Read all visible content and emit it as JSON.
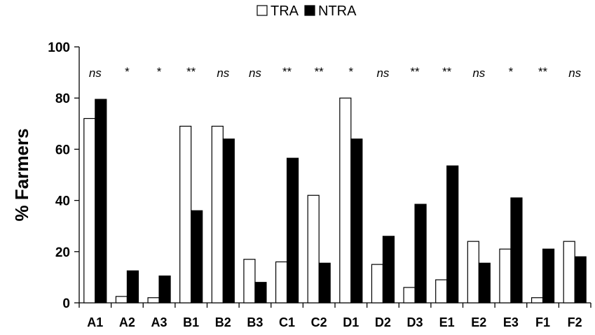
{
  "chart_data": {
    "type": "bar",
    "title": "",
    "xlabel": "",
    "ylabel": "% Farmers",
    "ylim": [
      0,
      100
    ],
    "yticks": [
      0,
      20,
      40,
      60,
      80,
      100
    ],
    "grid": false,
    "legend_position": "top-center",
    "categories": [
      "A1",
      "A2",
      "A3",
      "B1",
      "B2",
      "B3",
      "C1",
      "C2",
      "D1",
      "D2",
      "D3",
      "E1",
      "E2",
      "E3",
      "F1",
      "F2"
    ],
    "series": [
      {
        "name": "TRA",
        "color": "#ffffff",
        "values": [
          72,
          2.5,
          2,
          69,
          69,
          17,
          16,
          42,
          80,
          15,
          6,
          9,
          24,
          21,
          2,
          24
        ]
      },
      {
        "name": "NTRA",
        "color": "#000000",
        "values": [
          79.5,
          12.5,
          10.5,
          36,
          64,
          8,
          56.5,
          15.5,
          64,
          26,
          38.5,
          53.5,
          15.5,
          41,
          21,
          18
        ]
      }
    ],
    "significance": [
      "ns",
      "*",
      "*",
      "**",
      "ns",
      "ns",
      "**",
      "**",
      "*",
      "ns",
      "**",
      "**",
      "ns",
      "*",
      "**",
      "ns"
    ]
  }
}
